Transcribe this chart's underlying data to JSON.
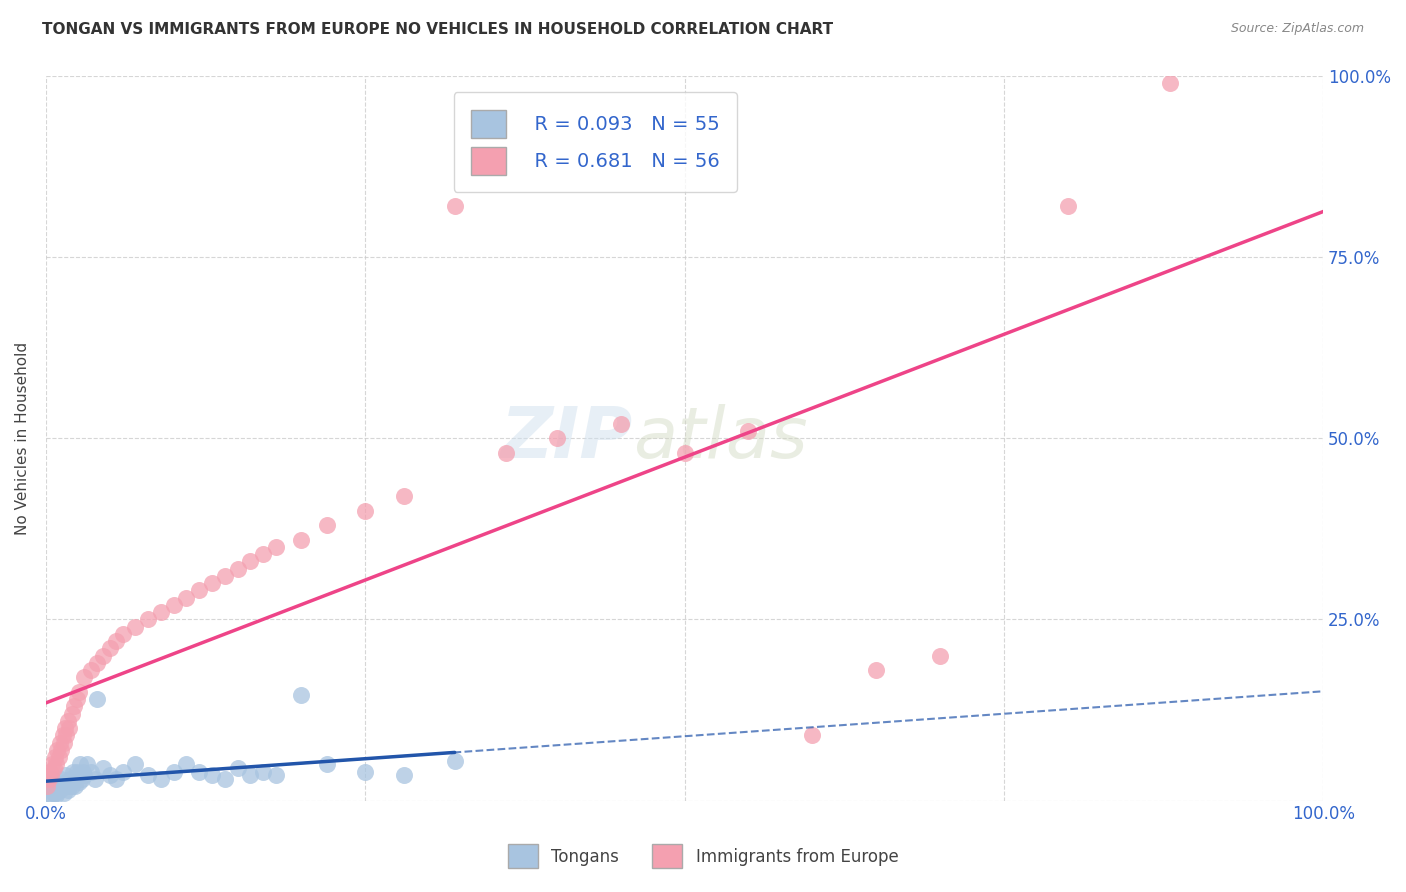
{
  "title": "TONGAN VS IMMIGRANTS FROM EUROPE NO VEHICLES IN HOUSEHOLD CORRELATION CHART",
  "source": "Source: ZipAtlas.com",
  "ylabel": "No Vehicles in Household",
  "background_color": "#ffffff",
  "grid_color": "#cccccc",
  "tongan_R": 0.093,
  "tongan_N": 55,
  "europe_R": 0.681,
  "europe_N": 56,
  "tongan_color": "#a8c4e0",
  "europe_color": "#f4a0b0",
  "tongan_line_color": "#2255aa",
  "europe_line_color": "#ee4488",
  "xlim": [
    0,
    100
  ],
  "ylim": [
    0,
    100
  ],
  "tongan_x": [
    0.1,
    0.2,
    0.3,
    0.4,
    0.5,
    0.6,
    0.7,
    0.8,
    0.9,
    1.0,
    1.1,
    1.2,
    1.3,
    1.4,
    1.5,
    1.6,
    1.7,
    1.8,
    1.9,
    2.0,
    2.1,
    2.2,
    2.3,
    2.4,
    2.5,
    2.6,
    2.7,
    2.8,
    2.9,
    3.0,
    3.2,
    3.5,
    3.8,
    4.0,
    4.5,
    5.0,
    5.5,
    6.0,
    7.0,
    8.0,
    9.0,
    10.0,
    11.0,
    12.0,
    13.0,
    14.0,
    15.0,
    16.0,
    17.0,
    18.0,
    20.0,
    22.0,
    25.0,
    28.0,
    32.0
  ],
  "tongan_y": [
    1.0,
    2.0,
    1.5,
    0.5,
    3.0,
    1.0,
    2.5,
    0.8,
    1.2,
    2.0,
    1.5,
    3.0,
    2.0,
    1.0,
    3.5,
    2.5,
    1.5,
    2.0,
    3.0,
    2.0,
    4.0,
    3.0,
    2.0,
    4.0,
    3.5,
    2.5,
    5.0,
    3.0,
    4.0,
    3.5,
    5.0,
    4.0,
    3.0,
    14.0,
    4.5,
    3.5,
    3.0,
    4.0,
    5.0,
    3.5,
    3.0,
    4.0,
    5.0,
    4.0,
    3.5,
    3.0,
    4.5,
    3.5,
    4.0,
    3.5,
    14.5,
    5.0,
    4.0,
    3.5,
    5.5
  ],
  "europe_x": [
    0.1,
    0.2,
    0.3,
    0.4,
    0.5,
    0.6,
    0.7,
    0.8,
    0.9,
    1.0,
    1.1,
    1.2,
    1.3,
    1.4,
    1.5,
    1.6,
    1.7,
    1.8,
    2.0,
    2.2,
    2.4,
    2.6,
    3.0,
    3.5,
    4.0,
    4.5,
    5.0,
    5.5,
    6.0,
    7.0,
    8.0,
    9.0,
    10.0,
    11.0,
    12.0,
    13.0,
    14.0,
    15.0,
    16.0,
    17.0,
    18.0,
    20.0,
    22.0,
    25.0,
    28.0,
    32.0,
    36.0,
    40.0,
    45.0,
    50.0,
    55.0,
    60.0,
    65.0,
    70.0,
    80.0,
    88.0
  ],
  "europe_y": [
    2.0,
    3.0,
    4.0,
    3.5,
    5.0,
    4.5,
    6.0,
    5.0,
    7.0,
    6.0,
    8.0,
    7.0,
    9.0,
    8.0,
    10.0,
    9.0,
    11.0,
    10.0,
    12.0,
    13.0,
    14.0,
    15.0,
    17.0,
    18.0,
    19.0,
    20.0,
    21.0,
    22.0,
    23.0,
    24.0,
    25.0,
    26.0,
    27.0,
    28.0,
    29.0,
    30.0,
    31.0,
    32.0,
    33.0,
    34.0,
    35.0,
    36.0,
    38.0,
    40.0,
    42.0,
    82.0,
    48.0,
    50.0,
    52.0,
    48.0,
    51.0,
    9.0,
    18.0,
    20.0,
    82.0,
    99.0
  ]
}
